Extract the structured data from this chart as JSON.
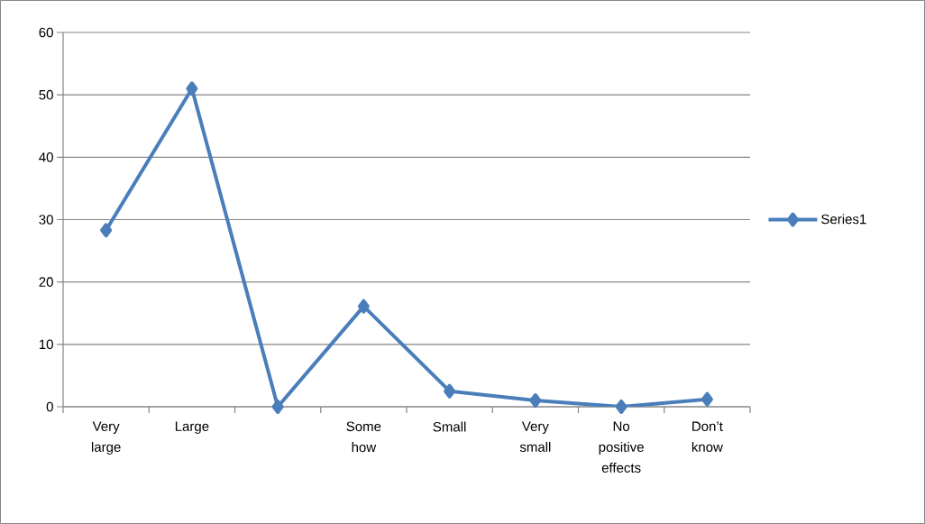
{
  "chart_data": {
    "type": "line",
    "categories": [
      "Very large",
      "Large",
      null,
      "Some how",
      "Small",
      "Very small",
      "No positive effects",
      "Don’t know"
    ],
    "series": [
      {
        "name": "Series1",
        "color": "#4a7ebb",
        "values": [
          28.3,
          51,
          0,
          16.1,
          2.5,
          1.0,
          0,
          1.2
        ]
      }
    ],
    "ylim": [
      0,
      60
    ],
    "yticks": [
      0,
      10,
      20,
      30,
      40,
      50,
      60
    ],
    "grid": "y",
    "legend": "right",
    "marker": "diamond"
  }
}
